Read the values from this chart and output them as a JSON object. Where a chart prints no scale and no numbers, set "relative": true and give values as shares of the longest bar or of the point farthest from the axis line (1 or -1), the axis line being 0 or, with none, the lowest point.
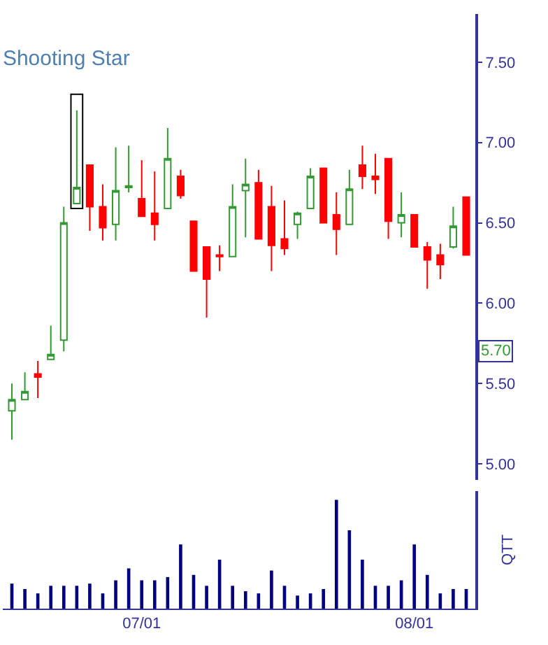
{
  "chart_data": [
    {
      "type": "candlestick",
      "title": "Shooting Star",
      "categories": [
        null,
        null,
        null,
        null,
        null,
        null,
        null,
        null,
        null,
        null,
        null,
        null,
        null,
        null,
        null,
        null,
        null,
        null,
        null,
        null,
        null,
        null,
        null,
        null,
        null,
        null,
        null,
        null,
        null,
        null,
        null,
        null,
        null,
        null,
        null,
        null
      ],
      "ohlc": [
        [
          5.33,
          5.5,
          5.15,
          5.4
        ],
        [
          5.4,
          5.57,
          5.4,
          5.45
        ],
        [
          5.56,
          5.64,
          5.41,
          5.54
        ],
        [
          5.65,
          5.86,
          5.65,
          5.68
        ],
        [
          5.77,
          6.6,
          5.7,
          6.5
        ],
        [
          6.62,
          7.2,
          6.62,
          6.72
        ],
        [
          6.86,
          6.86,
          6.45,
          6.6
        ],
        [
          6.6,
          6.74,
          6.39,
          6.47
        ],
        [
          6.49,
          6.97,
          6.39,
          6.7
        ],
        [
          6.72,
          6.98,
          6.69,
          6.73
        ],
        [
          6.65,
          6.89,
          6.54,
          6.54
        ],
        [
          6.56,
          6.82,
          6.39,
          6.49
        ],
        [
          6.59,
          7.09,
          6.59,
          6.9
        ],
        [
          6.79,
          6.83,
          6.65,
          6.67
        ],
        [
          6.51,
          6.51,
          6.2,
          6.2
        ],
        [
          6.35,
          6.35,
          5.91,
          6.15
        ],
        [
          6.3,
          6.36,
          6.2,
          6.29
        ],
        [
          6.29,
          6.74,
          6.29,
          6.6
        ],
        [
          6.7,
          6.9,
          6.41,
          6.74
        ],
        [
          6.75,
          6.83,
          6.4,
          6.4
        ],
        [
          6.6,
          6.73,
          6.2,
          6.36
        ],
        [
          6.4,
          6.64,
          6.3,
          6.34
        ],
        [
          6.49,
          6.57,
          6.4,
          6.56
        ],
        [
          6.59,
          6.84,
          6.59,
          6.79
        ],
        [
          6.84,
          6.84,
          6.5,
          6.5
        ],
        [
          6.55,
          6.69,
          6.3,
          6.46
        ],
        [
          6.49,
          6.83,
          6.49,
          6.71
        ],
        [
          6.86,
          6.98,
          6.71,
          6.79
        ],
        [
          6.79,
          6.93,
          6.68,
          6.77
        ],
        [
          6.9,
          6.9,
          6.4,
          6.51
        ],
        [
          6.5,
          6.69,
          6.41,
          6.55
        ],
        [
          6.55,
          6.55,
          6.35,
          6.35
        ],
        [
          6.35,
          6.38,
          6.09,
          6.27
        ],
        [
          6.3,
          6.37,
          6.15,
          6.24
        ],
        [
          6.35,
          6.6,
          6.34,
          6.48
        ],
        [
          6.66,
          6.66,
          6.3,
          6.3
        ]
      ],
      "colors": [
        "#339933",
        "#339933",
        "#ff0000",
        "#339933",
        "#339933",
        "#339933",
        "#ff0000",
        "#ff0000",
        "#339933",
        "#339933",
        "#ff0000",
        "#ff0000",
        "#339933",
        "#ff0000",
        "#ff0000",
        "#ff0000",
        "#ff0000",
        "#339933",
        "#339933",
        "#ff0000",
        "#ff0000",
        "#ff0000",
        "#339933",
        "#339933",
        "#ff0000",
        "#ff0000",
        "#339933",
        "#ff0000",
        "#ff0000",
        "#ff0000",
        "#339933",
        "#ff0000",
        "#ff0000",
        "#ff0000",
        "#339933",
        "#ff0000"
      ],
      "ylim": [
        4.9,
        7.8
      ],
      "yticks": [
        {
          "value": 5,
          "label": "5.00"
        },
        {
          "value": 5.5,
          "label": "5.50"
        },
        {
          "value": 6,
          "label": "6.00"
        },
        {
          "value": 6.5,
          "label": "6.50"
        },
        {
          "value": 7,
          "label": "7.00"
        },
        {
          "value": 7.5,
          "label": "7.50"
        }
      ],
      "annotations": [
        "5.70"
      ],
      "grid": false,
      "legend": false
    },
    {
      "type": "bar",
      "ylabel": "QTT",
      "categories": [
        null,
        null,
        null,
        null,
        null,
        null,
        null,
        null,
        null,
        null,
        "07/01",
        null,
        null,
        null,
        null,
        null,
        null,
        null,
        null,
        null,
        null,
        null,
        null,
        null,
        null,
        null,
        null,
        null,
        null,
        null,
        null,
        "08/01",
        null,
        null,
        null,
        null
      ],
      "values": [
        0.23,
        0.18,
        0.14,
        0.21,
        0.21,
        0.21,
        0.23,
        0.14,
        0.26,
        0.37,
        0.26,
        0.26,
        0.29,
        0.59,
        0.31,
        0.21,
        0.45,
        0.21,
        0.16,
        0.14,
        0.35,
        0.21,
        0.12,
        0.14,
        0.18,
        1,
        0.72,
        0.45,
        0.21,
        0.21,
        0.26,
        0.59,
        0.31,
        0.14,
        0.18,
        0.18
      ],
      "color": "#000080",
      "relative": true,
      "tick_labels": "x",
      "grid": false,
      "legend": false
    }
  ]
}
